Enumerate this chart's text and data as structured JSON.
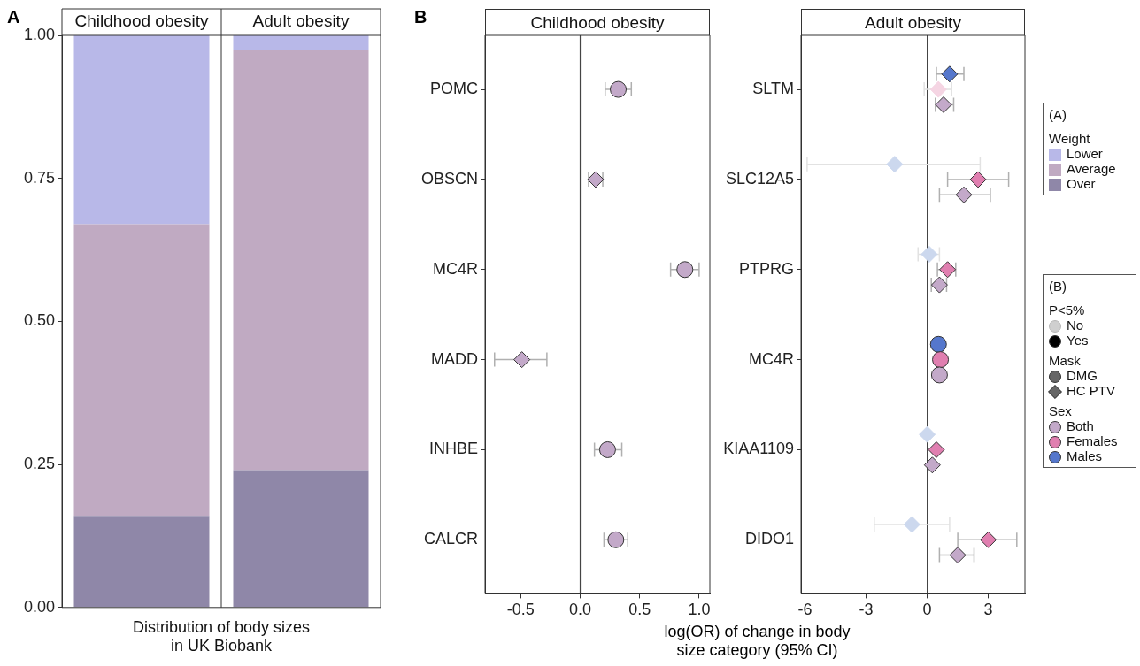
{
  "chart_data": [
    {
      "type": "bar",
      "categories": [
        "Childhood obesity",
        "Adult obesity"
      ],
      "stacked": true,
      "xlabel": "Distribution of body sizes\nin UK Biobank",
      "legend": "right",
      "legend_title": "Weight",
      "annotations": [
        "A",
        "(A)"
      ],
      "ylim": [
        0,
        1
      ],
      "yticks": [
        {
          "value": 0,
          "label": "0.00"
        },
        {
          "value": 0.25,
          "label": "0.25"
        },
        {
          "value": 0.5,
          "label": "0.50"
        },
        {
          "value": 0.75,
          "label": "0.75"
        },
        {
          "value": 1,
          "label": "1.00"
        }
      ],
      "series": [
        {
          "name": "Over",
          "color": "#8f87a8",
          "values": [
            0.16,
            0.24
          ]
        },
        {
          "name": "Average",
          "color": "#c0aac2",
          "values": [
            0.51,
            0.735
          ]
        },
        {
          "name": "Lower",
          "color": "#b8b8e8",
          "values": [
            0.33,
            0.025
          ]
        }
      ]
    },
    {
      "type": "scatter",
      "orientation": "horizontal",
      "title": "Childhood obesity",
      "annotations": [
        "B"
      ],
      "categories": [
        "POMC",
        "OBSCN",
        "MC4R",
        "MADD",
        "INHBE",
        "CALCR"
      ],
      "xlim": [
        -0.8,
        1.09
      ],
      "xticks": [
        -0.5,
        {
          "value": 0,
          "label": "0.0"
        },
        0.5,
        {
          "value": 1,
          "label": "1.0"
        }
      ],
      "ref_lines": [
        {
          "axis": "x",
          "value": 0,
          "color": "#444444"
        }
      ],
      "series": [
        {
          "color": "#c3a9c9",
          "marker": "circle",
          "values": [
            0.32,
            null,
            0.88,
            null,
            0.23,
            0.3
          ],
          "errors": [
            [
              0.21,
              0.43
            ],
            null,
            [
              0.76,
              1.0
            ],
            null,
            [
              0.12,
              0.35
            ],
            [
              0.2,
              0.4
            ]
          ]
        },
        {
          "color": "#c3a9c9",
          "marker": "diamond",
          "values": [
            null,
            0.13,
            null,
            -0.49,
            null,
            null
          ],
          "errors": [
            null,
            [
              0.07,
              0.19
            ],
            null,
            [
              -0.72,
              -0.28
            ],
            null,
            null
          ]
        }
      ]
    },
    {
      "type": "scatter",
      "orientation": "horizontal",
      "title": "Adult obesity",
      "xlabel": "log(OR) of change in body\nsize category (95% CI)",
      "legend": "right",
      "legend_title": "Sex",
      "annotations": [
        "(B)",
        "P<5%",
        "No",
        "Yes",
        "Mask",
        "DMG",
        "HC PTV"
      ],
      "categories": [
        "SLTM",
        "SLC12A5",
        "PTPRG",
        "MC4R",
        "KIAA1109",
        "DIDO1"
      ],
      "xlim": [
        -6.2,
        4.8
      ],
      "xticks": [
        -6,
        -3,
        0,
        3
      ],
      "ref_lines": [
        {
          "axis": "x",
          "value": 0,
          "color": "#444444"
        }
      ],
      "series": [
        {
          "name": "Both",
          "color": "#c3a9c9",
          "marker": "diamond",
          "values": [
            0.8,
            1.8,
            0.6,
            null,
            0.25,
            1.5
          ],
          "errors": [
            [
              0.4,
              1.3
            ],
            [
              0.6,
              3.1
            ],
            [
              0.2,
              0.95
            ],
            null,
            null,
            [
              0.6,
              2.3
            ]
          ]
        },
        {
          "name": "Females",
          "color": "#e07fb0",
          "colors": [
            "#f5d5e3",
            "#e07fb0",
            "#e07fb0",
            null,
            "#e07fb0",
            "#e07fb0"
          ],
          "marker": "diamond",
          "values": [
            0.55,
            2.5,
            1.0,
            null,
            0.45,
            3.0
          ],
          "errors": [
            [
              -0.15,
              1.2
            ],
            [
              1.0,
              4.0
            ],
            [
              0.5,
              1.4
            ],
            null,
            null,
            [
              1.5,
              4.4
            ]
          ]
        },
        {
          "name": "Males",
          "color": "#5577cc",
          "colors": [
            "#5577cc",
            "#ccd8ee",
            "#ccd8ee",
            null,
            "#ccd8ee",
            "#ccd8ee"
          ],
          "marker": "diamond",
          "values": [
            1.1,
            -1.6,
            0.1,
            null,
            0.0,
            -0.75
          ],
          "errors": [
            [
              0.45,
              1.8
            ],
            [
              -5.9,
              2.6
            ],
            [
              -0.45,
              0.6
            ],
            null,
            null,
            [
              -2.6,
              1.1
            ]
          ]
        },
        {
          "color": "#c3a9c9",
          "marker": "circle",
          "values": [
            null,
            null,
            null,
            0.6,
            null,
            null
          ]
        },
        {
          "color": "#e07fb0",
          "marker": "circle",
          "values": [
            null,
            null,
            null,
            0.65,
            null,
            null
          ]
        },
        {
          "color": "#5577cc",
          "marker": "circle",
          "values": [
            null,
            null,
            null,
            0.55,
            null,
            null
          ]
        }
      ]
    }
  ]
}
